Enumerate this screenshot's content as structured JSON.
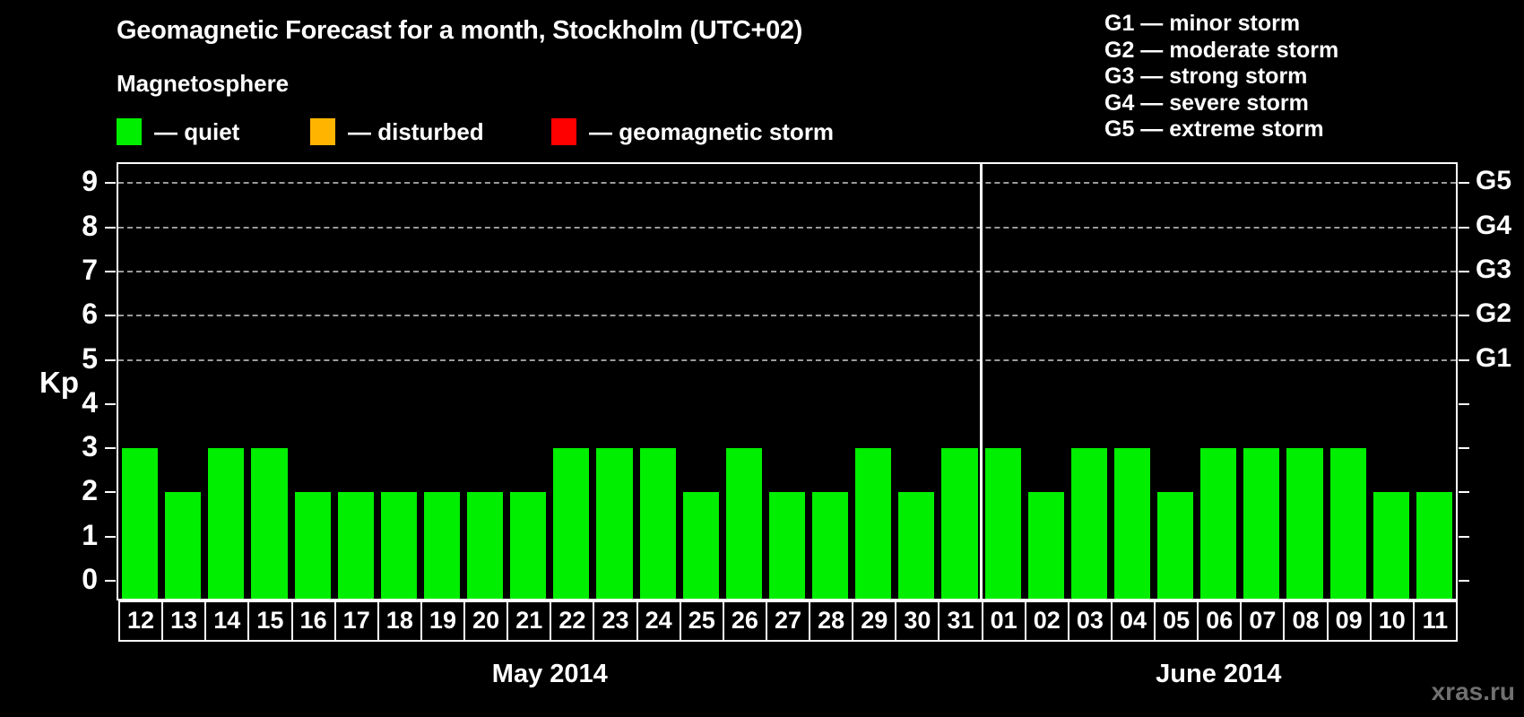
{
  "title": "Geomagnetic Forecast for a month, Stockholm (UTC+02)",
  "subtitle": "Magnetosphere",
  "legend": {
    "items": [
      {
        "name": "quiet",
        "label": "— quiet",
        "color": "#00ee00"
      },
      {
        "name": "disturbed",
        "label": "— disturbed",
        "color": "#ffb400"
      },
      {
        "name": "storm",
        "label": "— geomagnetic storm",
        "color": "#ff0000"
      }
    ]
  },
  "g_scale_legend": [
    "G1 — minor storm",
    "G2 — moderate storm",
    "G3 — strong storm",
    "G4 — severe storm",
    "G5 — extreme storm"
  ],
  "watermark": "xras.ru",
  "chart_data": {
    "type": "bar",
    "title": "Geomagnetic Forecast for a month, Stockholm (UTC+02)",
    "ylabel": "Kp",
    "ylim": [
      0,
      9
    ],
    "yticks": [
      0,
      1,
      2,
      3,
      4,
      5,
      6,
      7,
      8,
      9
    ],
    "gridline_values": [
      5,
      6,
      7,
      8,
      9
    ],
    "grid": "dashed, horizontal at G-storm levels",
    "bar_color": "#00ee00",
    "right_axis_labels": [
      {
        "text": "G1",
        "value": 5
      },
      {
        "text": "G2",
        "value": 6
      },
      {
        "text": "G3",
        "value": 7
      },
      {
        "text": "G4",
        "value": 8
      },
      {
        "text": "G5",
        "value": 9
      }
    ],
    "months": [
      {
        "label": "May 2014",
        "days": [
          "12",
          "13",
          "14",
          "15",
          "16",
          "17",
          "18",
          "19",
          "20",
          "21",
          "22",
          "23",
          "24",
          "25",
          "26",
          "27",
          "28",
          "29",
          "30",
          "31"
        ],
        "values": [
          3,
          2,
          3,
          3,
          2,
          2,
          2,
          2,
          2,
          2,
          3,
          3,
          3,
          2,
          3,
          2,
          2,
          3,
          2,
          3
        ]
      },
      {
        "label": "June 2014",
        "days": [
          "01",
          "02",
          "03",
          "04",
          "05",
          "06",
          "07",
          "08",
          "09",
          "10",
          "11"
        ],
        "values": [
          3,
          2,
          3,
          3,
          2,
          3,
          3,
          3,
          3,
          2,
          2
        ]
      }
    ]
  }
}
